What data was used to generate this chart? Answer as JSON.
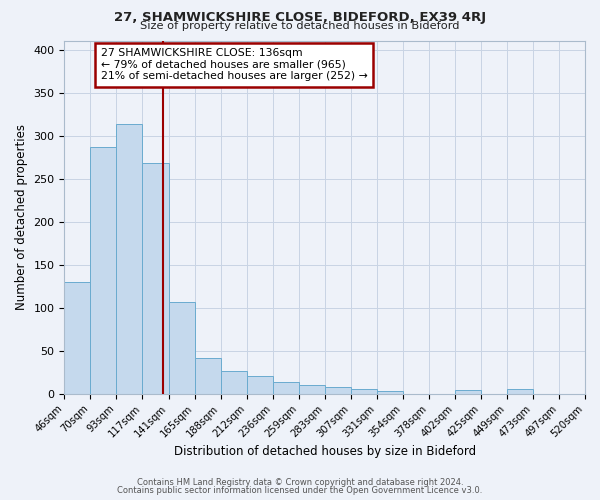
{
  "title1": "27, SHAMWICKSHIRE CLOSE, BIDEFORD, EX39 4RJ",
  "title2": "Size of property relative to detached houses in Bideford",
  "xlabel": "Distribution of detached houses by size in Bideford",
  "ylabel": "Number of detached properties",
  "bin_labels": [
    "46sqm",
    "70sqm",
    "93sqm",
    "117sqm",
    "141sqm",
    "165sqm",
    "188sqm",
    "212sqm",
    "236sqm",
    "259sqm",
    "283sqm",
    "307sqm",
    "331sqm",
    "354sqm",
    "378sqm",
    "402sqm",
    "425sqm",
    "449sqm",
    "473sqm",
    "497sqm",
    "520sqm"
  ],
  "bar_heights": [
    130,
    287,
    313,
    268,
    107,
    41,
    26,
    21,
    13,
    10,
    8,
    5,
    3,
    0,
    0,
    4,
    0,
    5,
    0,
    0,
    0
  ],
  "bar_color": "#c5d9ed",
  "bar_edge_color": "#6aabcf",
  "background_color": "#eef2f9",
  "grid_color": "#c8d4e4",
  "property_line_color": "#9b0000",
  "annotation_line1": "27 SHAMWICKSHIRE CLOSE: 136sqm",
  "annotation_line2": "← 79% of detached houses are smaller (965)",
  "annotation_line3": "21% of semi-detached houses are larger (252) →",
  "annotation_box_color": "#ffffff",
  "annotation_box_edge": "#9b0000",
  "ylim": [
    0,
    410
  ],
  "yticks": [
    0,
    50,
    100,
    150,
    200,
    250,
    300,
    350,
    400
  ],
  "footer1": "Contains HM Land Registry data © Crown copyright and database right 2024.",
  "footer2": "Contains public sector information licensed under the Open Government Licence v3.0.",
  "bin_edges_sqm": [
    46,
    70,
    93,
    117,
    141,
    165,
    188,
    212,
    236,
    259,
    283,
    307,
    331,
    354,
    378,
    402,
    425,
    449,
    473,
    497,
    520
  ],
  "property_sqm": 136
}
